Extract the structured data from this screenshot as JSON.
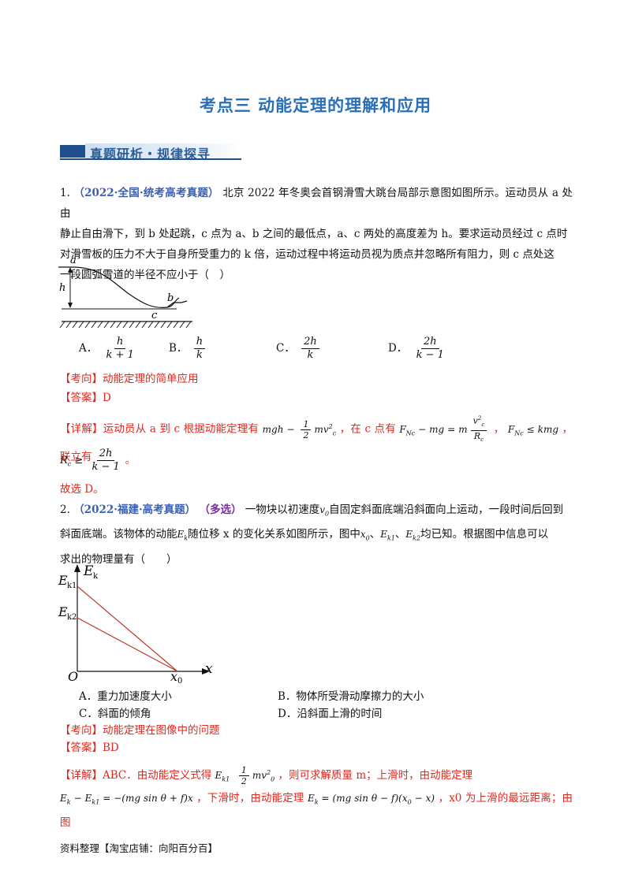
{
  "page_title": "考点三 动能定理的理解和应用",
  "section_banner": "真题研析・规律探寻",
  "q1": {
    "number": "1.",
    "source": "（2022·全国·统考高考真题）",
    "text_line1": "北京 2022 年冬奥会首钢滑雪大跳台局部示意图如图所示。运动员从 a 处由",
    "text_line2": "静止自由滑下，到 b 处起跳，c 点为 a、b 之间的最低点，a、c 两处的高度差为 h。要求运动员经过 c 点时",
    "text_line3": "对滑雪板的压力不大于自身所受重力的 k 倍，运动过程中将运动员视为质点并忽略所有阻力，则 c 点处这",
    "text_line4": "一段圆弧雪道的半径不应小于（　）",
    "figure_labels": {
      "a": "a",
      "b": "b",
      "c": "c",
      "h": "h"
    },
    "options": {
      "A": {
        "label": "A．",
        "num": "h",
        "den": "k + 1"
      },
      "B": {
        "label": "B．",
        "num": "h",
        "den": "k"
      },
      "C": {
        "label": "C．",
        "num": "2h",
        "den": "k"
      },
      "D": {
        "label": "D．",
        "num": "2h",
        "den": "k − 1"
      }
    },
    "kaoxiang_tag": "【考向】",
    "kaoxiang": "动能定理的简单应用",
    "answer_tag": "【答案】",
    "answer": "D",
    "detail_tag": "【详解】",
    "detail_part1": "运动员从 a 到 c 根据动能定理有",
    "detail_eq1_left": "mgh",
    "detail_eq1_right": "mv",
    "detail_part2": "，在 c 点有",
    "detail_eq2": "F",
    "detail_part3": "，",
    "detail_eq3": "F",
    "detail_part4": "，联立有",
    "result_lhs": "R",
    "result_num": "2h",
    "result_den": "k − 1",
    "conclusion": "故选 D。"
  },
  "q2": {
    "number": "2.",
    "source": "（2022·福建·高考真题）",
    "multi": "（多选）",
    "text_line1a": "一物块以初速度",
    "text_line1b": "自固定斜面底端沿斜面向上运动，一段时间后回到",
    "text_line2a": "斜面底端。该物体的动能",
    "text_line2b": "随位移 x 的变化关系如图所示，图中",
    "text_line2c": "、",
    "text_line2d": "、",
    "text_line2e": "均已知。根据图中信息可以",
    "text_line3": "求出的物理量有（　　）",
    "v0": "v",
    "figure_labels": {
      "ek": "E",
      "ek1": "E",
      "ek2": "E",
      "o": "O",
      "x0": "x",
      "x": "x"
    },
    "options": {
      "A": "A．重力加速度大小",
      "B": "B．物体所受滑动摩擦力的大小",
      "C": "C．斜面的倾角",
      "D": "D．沿斜面上滑的时间"
    },
    "kaoxiang_tag": "【考向】",
    "kaoxiang": "动能定理在图像中的问题",
    "answer_tag": "【答案】",
    "answer": "BD",
    "detail_tag": "【详解】",
    "detail_part1": "ABC．由动能定义式得",
    "detail_part2": "，则可求解质量 m；上滑时，由动能定理",
    "detail_line2_mid": "，下滑时，由动能定理",
    "detail_line2_end": "，x0 为上滑的最远距离；由图"
  },
  "footer": "资料整理【淘宝店铺：向阳百分百】"
}
